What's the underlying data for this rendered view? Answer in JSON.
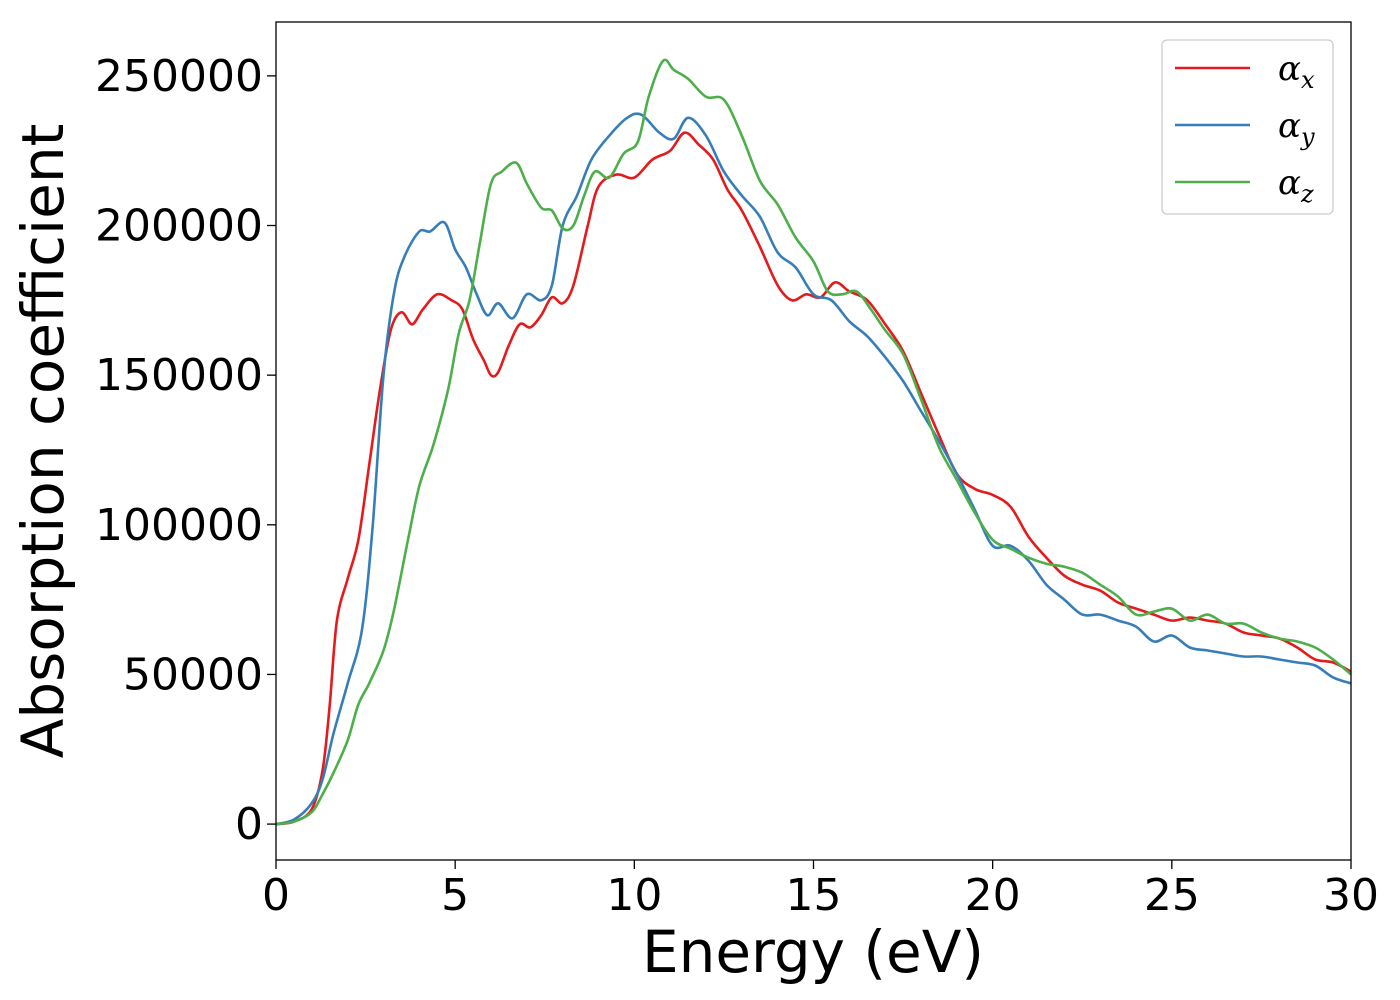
{
  "chart_data": {
    "type": "line",
    "title": "",
    "xlabel": "Energy (eV)",
    "ylabel": "Absorption coefficient",
    "xlim": [
      0,
      30
    ],
    "ylim": [
      -12000,
      268000
    ],
    "xticks": [
      0,
      5,
      10,
      15,
      20,
      25,
      30
    ],
    "xtick_labels": [
      "0",
      "5",
      "10",
      "15",
      "20",
      "25",
      "30"
    ],
    "yticks": [
      0,
      50000,
      100000,
      150000,
      200000,
      250000
    ],
    "ytick_labels": [
      "0",
      "50000",
      "100000",
      "150000",
      "200000",
      "250000"
    ],
    "grid": false,
    "legend_position": "top-right",
    "series": [
      {
        "name": "α",
        "subscript": "x",
        "color": "#e41a1c",
        "points": [
          [
            0,
            0
          ],
          [
            0.5,
            800
          ],
          [
            1.0,
            5000
          ],
          [
            1.3,
            18000
          ],
          [
            1.5,
            40000
          ],
          [
            1.7,
            68000
          ],
          [
            2.0,
            82000
          ],
          [
            2.3,
            95000
          ],
          [
            2.6,
            120000
          ],
          [
            2.9,
            145000
          ],
          [
            3.2,
            165000
          ],
          [
            3.5,
            171000
          ],
          [
            3.8,
            167000
          ],
          [
            4.1,
            172000
          ],
          [
            4.5,
            177000
          ],
          [
            4.9,
            175000
          ],
          [
            5.2,
            172000
          ],
          [
            5.5,
            162000
          ],
          [
            5.8,
            155000
          ],
          [
            6.0,
            150000
          ],
          [
            6.2,
            151000
          ],
          [
            6.5,
            160000
          ],
          [
            6.8,
            167000
          ],
          [
            7.1,
            166000
          ],
          [
            7.4,
            170000
          ],
          [
            7.7,
            176000
          ],
          [
            8.0,
            174000
          ],
          [
            8.3,
            180000
          ],
          [
            8.7,
            200000
          ],
          [
            9.0,
            213000
          ],
          [
            9.5,
            217000
          ],
          [
            10.0,
            216000
          ],
          [
            10.5,
            222000
          ],
          [
            11.0,
            225000
          ],
          [
            11.4,
            231000
          ],
          [
            11.8,
            227000
          ],
          [
            12.2,
            222000
          ],
          [
            12.6,
            212000
          ],
          [
            13.0,
            205000
          ],
          [
            13.5,
            193000
          ],
          [
            14.0,
            180000
          ],
          [
            14.4,
            175000
          ],
          [
            14.8,
            177000
          ],
          [
            15.2,
            176000
          ],
          [
            15.6,
            181000
          ],
          [
            16.0,
            178000
          ],
          [
            16.5,
            175000
          ],
          [
            17.0,
            167000
          ],
          [
            17.5,
            158000
          ],
          [
            18.0,
            144000
          ],
          [
            18.5,
            130000
          ],
          [
            19.0,
            117000
          ],
          [
            19.5,
            112000
          ],
          [
            20.0,
            110000
          ],
          [
            20.5,
            106000
          ],
          [
            21.0,
            96000
          ],
          [
            21.5,
            89000
          ],
          [
            22.0,
            83000
          ],
          [
            22.5,
            80000
          ],
          [
            23.0,
            78000
          ],
          [
            23.5,
            74000
          ],
          [
            24.0,
            72000
          ],
          [
            24.5,
            70000
          ],
          [
            25.0,
            68000
          ],
          [
            25.5,
            69000
          ],
          [
            26.0,
            68000
          ],
          [
            26.5,
            67000
          ],
          [
            27.0,
            64000
          ],
          [
            27.5,
            63000
          ],
          [
            28.0,
            62000
          ],
          [
            28.5,
            59000
          ],
          [
            29.0,
            55000
          ],
          [
            29.5,
            54000
          ],
          [
            30.0,
            51000
          ]
        ]
      },
      {
        "name": "α",
        "subscript": "y",
        "color": "#377eb8",
        "points": [
          [
            0,
            0
          ],
          [
            0.5,
            1500
          ],
          [
            1.0,
            7000
          ],
          [
            1.3,
            15000
          ],
          [
            1.6,
            30000
          ],
          [
            2.0,
            47000
          ],
          [
            2.4,
            65000
          ],
          [
            2.7,
            100000
          ],
          [
            3.0,
            150000
          ],
          [
            3.3,
            178000
          ],
          [
            3.6,
            190000
          ],
          [
            4.0,
            198000
          ],
          [
            4.3,
            198000
          ],
          [
            4.7,
            201000
          ],
          [
            5.0,
            192000
          ],
          [
            5.3,
            186000
          ],
          [
            5.6,
            177000
          ],
          [
            5.9,
            170000
          ],
          [
            6.2,
            174000
          ],
          [
            6.6,
            169000
          ],
          [
            7.0,
            177000
          ],
          [
            7.4,
            175000
          ],
          [
            7.7,
            180000
          ],
          [
            8.0,
            200000
          ],
          [
            8.4,
            210000
          ],
          [
            8.8,
            222000
          ],
          [
            9.3,
            230000
          ],
          [
            9.8,
            236000
          ],
          [
            10.2,
            237000
          ],
          [
            10.7,
            231000
          ],
          [
            11.1,
            229000
          ],
          [
            11.5,
            236000
          ],
          [
            12.0,
            230000
          ],
          [
            12.5,
            218000
          ],
          [
            13.0,
            210000
          ],
          [
            13.5,
            203000
          ],
          [
            14.0,
            191000
          ],
          [
            14.5,
            186000
          ],
          [
            15.0,
            177000
          ],
          [
            15.5,
            175000
          ],
          [
            16.0,
            168000
          ],
          [
            16.5,
            163000
          ],
          [
            17.0,
            156000
          ],
          [
            17.5,
            148000
          ],
          [
            18.0,
            138000
          ],
          [
            18.5,
            128000
          ],
          [
            19.0,
            117000
          ],
          [
            19.5,
            105000
          ],
          [
            20.0,
            93000
          ],
          [
            20.5,
            93000
          ],
          [
            21.0,
            88000
          ],
          [
            21.5,
            80000
          ],
          [
            22.0,
            75000
          ],
          [
            22.5,
            70000
          ],
          [
            23.0,
            70000
          ],
          [
            23.5,
            68000
          ],
          [
            24.0,
            66000
          ],
          [
            24.5,
            61000
          ],
          [
            25.0,
            63000
          ],
          [
            25.5,
            59000
          ],
          [
            26.0,
            58000
          ],
          [
            26.5,
            57000
          ],
          [
            27.0,
            56000
          ],
          [
            27.5,
            56000
          ],
          [
            28.0,
            55000
          ],
          [
            28.5,
            54000
          ],
          [
            29.0,
            53000
          ],
          [
            29.5,
            49000
          ],
          [
            30.0,
            47000
          ]
        ]
      },
      {
        "name": "α",
        "subscript": "z",
        "color": "#4daf4a",
        "points": [
          [
            0,
            0
          ],
          [
            0.5,
            800
          ],
          [
            1.0,
            4000
          ],
          [
            1.3,
            10000
          ],
          [
            1.6,
            17000
          ],
          [
            2.0,
            28000
          ],
          [
            2.3,
            40000
          ],
          [
            2.6,
            47000
          ],
          [
            3.0,
            58000
          ],
          [
            3.3,
            72000
          ],
          [
            3.7,
            96000
          ],
          [
            4.0,
            113000
          ],
          [
            4.4,
            127000
          ],
          [
            4.8,
            145000
          ],
          [
            5.1,
            164000
          ],
          [
            5.4,
            175000
          ],
          [
            5.7,
            195000
          ],
          [
            6.0,
            214000
          ],
          [
            6.3,
            218000
          ],
          [
            6.7,
            221000
          ],
          [
            7.0,
            214000
          ],
          [
            7.4,
            206000
          ],
          [
            7.7,
            205000
          ],
          [
            8.0,
            199000
          ],
          [
            8.3,
            200000
          ],
          [
            8.6,
            210000
          ],
          [
            8.9,
            218000
          ],
          [
            9.3,
            216000
          ],
          [
            9.7,
            224000
          ],
          [
            10.1,
            228000
          ],
          [
            10.4,
            243000
          ],
          [
            10.8,
            255000
          ],
          [
            11.1,
            252000
          ],
          [
            11.5,
            249000
          ],
          [
            12.0,
            243000
          ],
          [
            12.5,
            242000
          ],
          [
            13.0,
            230000
          ],
          [
            13.5,
            215000
          ],
          [
            14.0,
            207000
          ],
          [
            14.5,
            196000
          ],
          [
            15.0,
            188000
          ],
          [
            15.4,
            178000
          ],
          [
            15.8,
            177000
          ],
          [
            16.2,
            178000
          ],
          [
            16.6,
            172000
          ],
          [
            17.0,
            165000
          ],
          [
            17.5,
            157000
          ],
          [
            18.0,
            142000
          ],
          [
            18.5,
            126000
          ],
          [
            19.0,
            115000
          ],
          [
            19.5,
            104000
          ],
          [
            20.0,
            95000
          ],
          [
            20.5,
            92000
          ],
          [
            21.0,
            89000
          ],
          [
            21.5,
            87000
          ],
          [
            22.0,
            86000
          ],
          [
            22.5,
            84000
          ],
          [
            23.0,
            80000
          ],
          [
            23.5,
            76000
          ],
          [
            24.0,
            70000
          ],
          [
            24.5,
            71000
          ],
          [
            25.0,
            72000
          ],
          [
            25.5,
            68000
          ],
          [
            26.0,
            70000
          ],
          [
            26.5,
            67000
          ],
          [
            27.0,
            67000
          ],
          [
            27.5,
            64000
          ],
          [
            28.0,
            62000
          ],
          [
            28.5,
            61000
          ],
          [
            29.0,
            59000
          ],
          [
            29.5,
            55000
          ],
          [
            30.0,
            50000
          ]
        ]
      }
    ]
  }
}
